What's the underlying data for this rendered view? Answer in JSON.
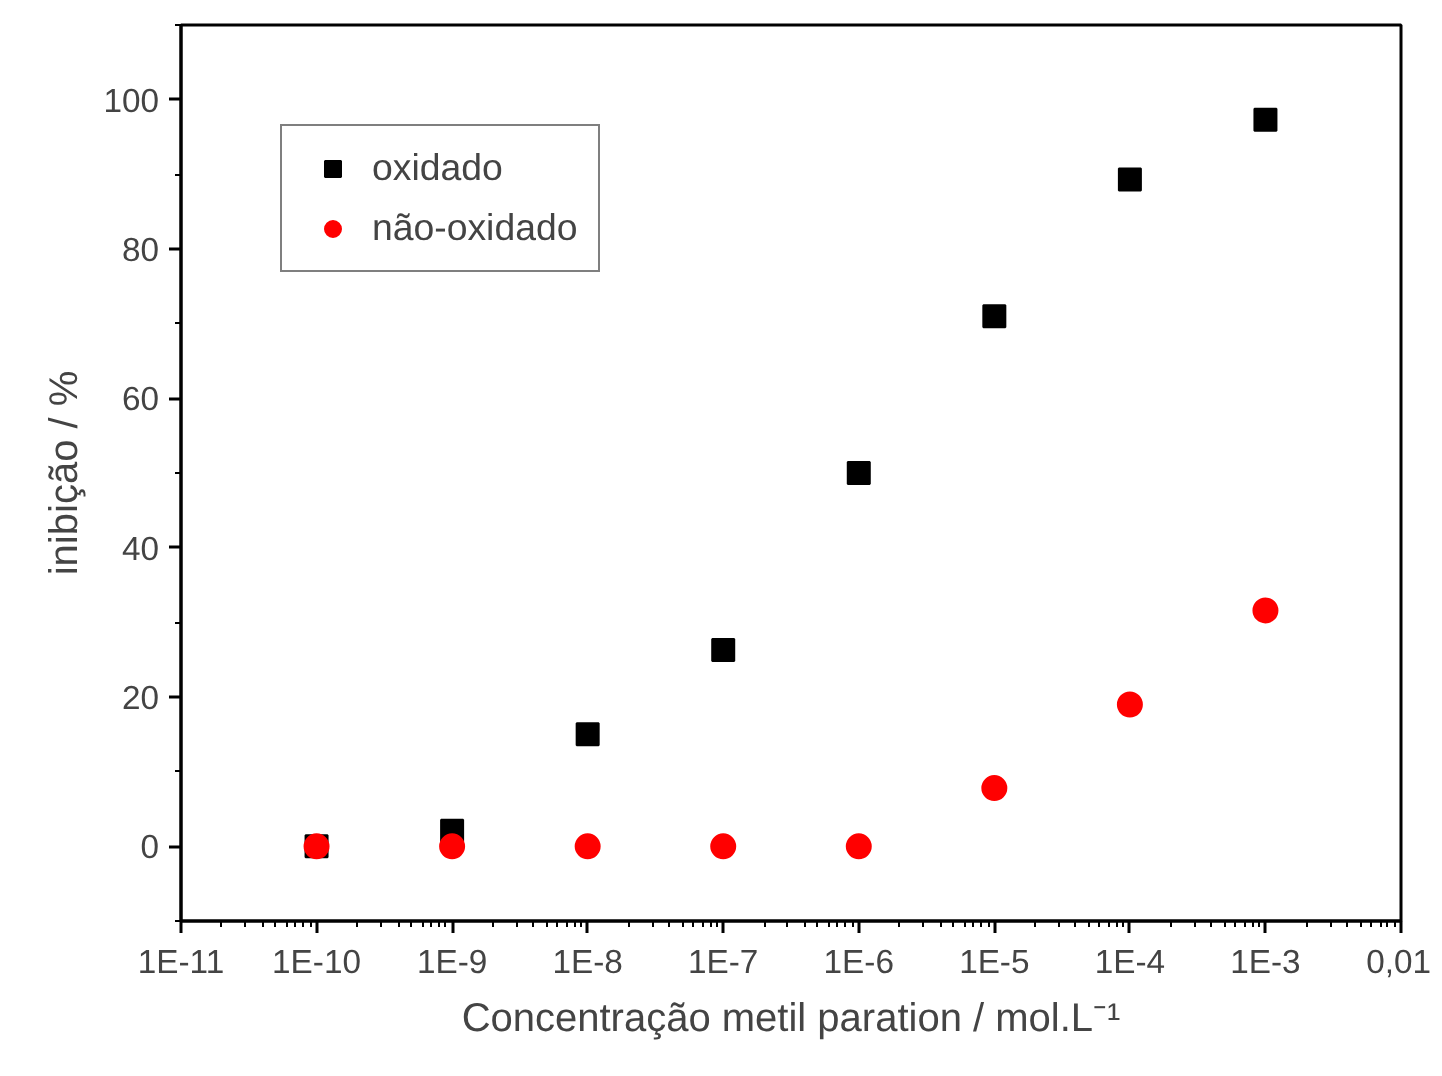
{
  "chart_data": {
    "type": "scatter",
    "xlabel": "Concentração metil paration / mol.L⁻¹",
    "ylabel": "inibição / %",
    "x": [
      1e-10,
      1e-09,
      1e-08,
      1e-07,
      1e-06,
      1e-05,
      0.0001,
      0.001
    ],
    "series": [
      {
        "name": "oxidado",
        "color": "#000000",
        "marker": "square",
        "values": [
          0,
          2.1,
          15,
          26.3,
          50,
          71,
          89.3,
          97.3
        ]
      },
      {
        "name": "não-oxidado",
        "color": "#ff0000",
        "marker": "circle",
        "values": [
          0,
          0,
          0,
          0,
          0,
          7.8,
          19,
          31.6
        ]
      }
    ],
    "log": "x",
    "xlim": [
      1e-11,
      0.01
    ],
    "xticks": [
      {
        "value": 1e-11,
        "label": "1E-11"
      },
      {
        "value": 1e-10,
        "label": "1E-10"
      },
      {
        "value": 1e-09,
        "label": "1E-9"
      },
      {
        "value": 1e-08,
        "label": "1E-8"
      },
      {
        "value": 1e-07,
        "label": "1E-7"
      },
      {
        "value": 1e-06,
        "label": "1E-6"
      },
      {
        "value": 1e-05,
        "label": "1E-5"
      },
      {
        "value": 0.0001,
        "label": "1E-4"
      },
      {
        "value": 0.001,
        "label": "1E-3"
      },
      {
        "value": 0.01,
        "label": "0,01"
      }
    ],
    "ylim": [
      -10,
      110
    ],
    "yticks": [
      0,
      20,
      40,
      60,
      80,
      100
    ],
    "grid": false,
    "legend": "top left"
  }
}
